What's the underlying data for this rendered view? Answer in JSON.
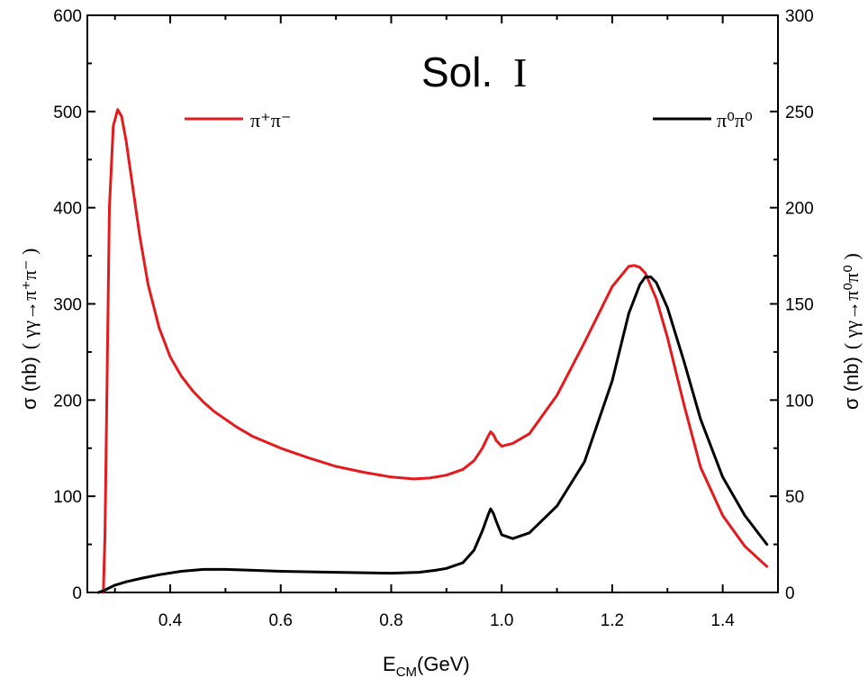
{
  "chart_data": {
    "type": "line",
    "title": "Sol.",
    "title_numeral": "I",
    "xlabel": "E",
    "xlabel_sub": "CM",
    "xlabel_unit": "(GeV)",
    "ylabel_left": "σ (nb)",
    "ylabel_left_process": "( γγ→π⁺π⁻ )",
    "ylabel_right": "σ (nb)",
    "ylabel_right_process": "( γγ→π⁰π⁰ )",
    "xlim": [
      0.25,
      1.5
    ],
    "ylim_left": [
      0,
      600
    ],
    "ylim_right": [
      0,
      300
    ],
    "x_ticks": [
      "0.4",
      "0.6",
      "0.8",
      "1.0",
      "1.2",
      "1.4"
    ],
    "y_ticks_left": [
      "0",
      "100",
      "200",
      "300",
      "400",
      "500",
      "600"
    ],
    "y_ticks_right": [
      "0",
      "50",
      "100",
      "150",
      "200",
      "250",
      "300"
    ],
    "legend": [
      {
        "label": "π⁺π⁻",
        "color": "#e41a1c",
        "position": "top-left"
      },
      {
        "label": "π⁰π⁰",
        "color": "#000000",
        "position": "top-right"
      }
    ],
    "series": [
      {
        "name": "π⁺π⁻",
        "axis": "left",
        "color": "#e41a1c",
        "x": [
          0.279,
          0.282,
          0.29,
          0.297,
          0.305,
          0.312,
          0.32,
          0.33,
          0.345,
          0.36,
          0.38,
          0.4,
          0.42,
          0.44,
          0.46,
          0.48,
          0.5,
          0.52,
          0.55,
          0.6,
          0.65,
          0.7,
          0.75,
          0.8,
          0.84,
          0.87,
          0.9,
          0.93,
          0.95,
          0.965,
          0.975,
          0.98,
          0.985,
          0.99,
          1.0,
          1.02,
          1.05,
          1.1,
          1.15,
          1.2,
          1.23,
          1.24,
          1.25,
          1.26,
          1.28,
          1.3,
          1.33,
          1.36,
          1.4,
          1.44,
          1.48
        ],
        "values": [
          0,
          60,
          400,
          485,
          502,
          495,
          470,
          430,
          370,
          320,
          275,
          245,
          225,
          210,
          198,
          188,
          180,
          172,
          162,
          150,
          140,
          131,
          125,
          120,
          118,
          119,
          122,
          128,
          137,
          150,
          162,
          167,
          164,
          158,
          152,
          155,
          165,
          205,
          260,
          318,
          339,
          340,
          338,
          332,
          305,
          265,
          195,
          130,
          80,
          48,
          27
        ]
      },
      {
        "name": "π⁰π⁰",
        "axis": "right",
        "color": "#000000",
        "x": [
          0.27,
          0.28,
          0.3,
          0.32,
          0.35,
          0.38,
          0.42,
          0.46,
          0.5,
          0.55,
          0.6,
          0.7,
          0.8,
          0.85,
          0.88,
          0.9,
          0.93,
          0.95,
          0.965,
          0.975,
          0.98,
          0.985,
          0.99,
          1.0,
          1.02,
          1.05,
          1.1,
          1.15,
          1.2,
          1.23,
          1.25,
          1.26,
          1.27,
          1.28,
          1.3,
          1.33,
          1.36,
          1.4,
          1.44,
          1.48
        ],
        "values": [
          0,
          1,
          3.8,
          5.5,
          7.5,
          9.2,
          11,
          12,
          12,
          11.5,
          11,
          10.5,
          10,
          10.5,
          11.5,
          12.5,
          15.5,
          22,
          32,
          40,
          43.5,
          41,
          37,
          30,
          28,
          31,
          45,
          68,
          110,
          145,
          160,
          164,
          164,
          161,
          148,
          120,
          90,
          60,
          40,
          25
        ]
      }
    ]
  }
}
